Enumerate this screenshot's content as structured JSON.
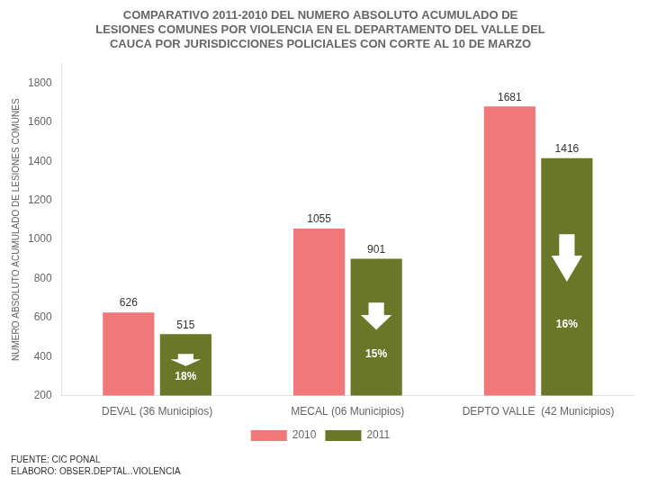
{
  "chart_data": {
    "type": "bar",
    "title": [
      "COMPARATIVO 2011-2010 DEL NUMERO ABSOLUTO ACUMULADO DE",
      "LESIONES COMUNES POR VIOLENCIA EN EL DEPARTAMENTO DEL VALLE DEL",
      "CAUCA POR JURISDICCIONES POLICIALES CON CORTE AL 10 DE MARZO"
    ],
    "categories": [
      "DEVAL (36 Municipios)",
      "MECAL (06 Municipios)",
      "DEPTO VALLE  (42 Municipios)"
    ],
    "series": [
      {
        "name": "2010",
        "color": "#F07878",
        "values": [
          626,
          1055,
          1681
        ]
      },
      {
        "name": "2011",
        "color": "#6B7728",
        "values": [
          515,
          901,
          1416
        ]
      }
    ],
    "ylabel": "NUMERO ABSOLUTO ACUMULADO DE LESIONES COMUNES",
    "ylim": [
      200,
      1900
    ],
    "yticks": [
      200,
      400,
      600,
      800,
      1000,
      1200,
      1400,
      1600,
      1800
    ],
    "grid": false,
    "legend": "bottom",
    "data_labels": true,
    "annotations": [
      {
        "category": "DEVAL (36 Municipios)",
        "series": "2011",
        "text": "18%"
      },
      {
        "category": "MECAL (06 Municipios)",
        "series": "2011",
        "text": "15%"
      },
      {
        "category": "DEPTO VALLE  (42 Municipios)",
        "series": "2011",
        "text": "16%"
      }
    ],
    "source": [
      "FUENTE: CIC PONAL",
      "ELABORO: OBSER.DEPTAL..VIOLENCIA"
    ]
  }
}
